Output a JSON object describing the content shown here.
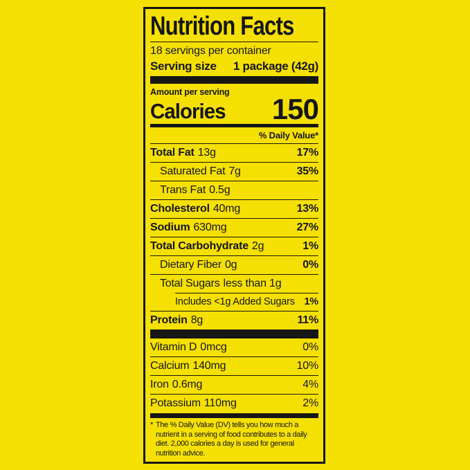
{
  "colors": {
    "background": "#f5e003",
    "ink": "#161616"
  },
  "label": {
    "title": "Nutrition Facts",
    "servings_per_container": "18 servings per container",
    "serving_size_label": "Serving size",
    "serving_size_value": "1 package (42g)",
    "amount_per_serving": "Amount per serving",
    "calories_label": "Calories",
    "calories_value": "150",
    "daily_value_header": "% Daily Value*",
    "nutrients": [
      {
        "name": "Total Fat",
        "amount": "13g",
        "dv": "17%"
      },
      {
        "name": "Saturated Fat",
        "amount": "7g",
        "dv": "35%"
      },
      {
        "name": "Trans Fat",
        "amount": "0.5g",
        "dv": ""
      },
      {
        "name": "Cholesterol",
        "amount": "40mg",
        "dv": "13%"
      },
      {
        "name": "Sodium",
        "amount": "630mg",
        "dv": "27%"
      },
      {
        "name": "Total Carbohydrate",
        "amount": "2g",
        "dv": "1%"
      },
      {
        "name": "Dietary Fiber",
        "amount": "0g",
        "dv": "0%"
      },
      {
        "name": "Total Sugars",
        "amount": "less than 1g",
        "dv": ""
      },
      {
        "name": "Includes <1g Added Sugars",
        "amount": "",
        "dv": "1%"
      },
      {
        "name": "Protein",
        "amount": "8g",
        "dv": "11%"
      }
    ],
    "vitamins": [
      {
        "name": "Vitamin D",
        "amount": "0mcg",
        "dv": "0%"
      },
      {
        "name": "Calcium",
        "amount": "140mg",
        "dv": "10%"
      },
      {
        "name": "Iron",
        "amount": "0.6mg",
        "dv": "4%"
      },
      {
        "name": "Potassium",
        "amount": "110mg",
        "dv": "2%"
      }
    ],
    "footnote_marker": "*",
    "footnote": "The % Daily Value (DV) tells you how much a nutrient in a serving of food contributes to a daily diet. 2,000 calories a day is used for general nutrition advice."
  }
}
